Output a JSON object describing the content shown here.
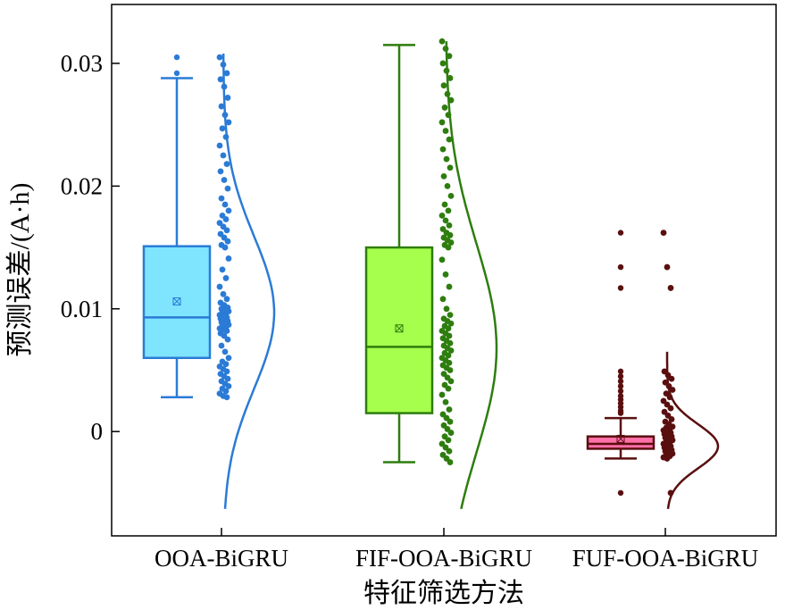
{
  "chart_data": {
    "type": "box",
    "xlabel": "特征筛选方法",
    "ylabel": "预测误差/(A·h)",
    "ylim": [
      -0.0085,
      0.0348
    ],
    "yticks": [
      0,
      0.01,
      0.02,
      0.03
    ],
    "ytick_labels": [
      "0",
      "0.01",
      "0.02",
      "0.03"
    ],
    "grid": false,
    "legend": "none",
    "categories": [
      "OOA-BiGRU",
      "FIF-OOA-BiGRU",
      "FUF-OOA-BiGRU"
    ],
    "series": [
      {
        "color": "#2b7bd6",
        "fill": "#7fe5ff",
        "box": {
          "whisker_low": 0.0028,
          "q1": 0.006,
          "median": 0.0093,
          "q3": 0.0151,
          "whisker_high": 0.0288,
          "mean": 0.0106
        },
        "outliers": [
          0.0292,
          0.0305
        ],
        "density": {
          "mean": 0.0097,
          "sd": 0.0062,
          "y_range": [
            -0.0063,
            0.0308
          ]
        },
        "points": [
          0.0305,
          0.0299,
          0.0292,
          0.0287,
          0.0281,
          0.0272,
          0.0265,
          0.0258,
          0.0252,
          0.0247,
          0.024,
          0.0233,
          0.0225,
          0.0218,
          0.0212,
          0.0205,
          0.0198,
          0.019,
          0.0185,
          0.018,
          0.0176,
          0.0173,
          0.017,
          0.0167,
          0.0164,
          0.0161,
          0.0158,
          0.0155,
          0.0152,
          0.015,
          0.0141,
          0.0132,
          0.0125,
          0.0118,
          0.0112,
          0.0108,
          0.0105,
          0.0103,
          0.0101,
          0.01,
          0.0099,
          0.0098,
          0.0097,
          0.0096,
          0.0095,
          0.0094,
          0.0093,
          0.0092,
          0.0091,
          0.009,
          0.0089,
          0.0088,
          0.0087,
          0.0086,
          0.0085,
          0.0084,
          0.0083,
          0.0082,
          0.008,
          0.0078,
          0.0075,
          0.007,
          0.0065,
          0.006,
          0.0057,
          0.0055,
          0.0053,
          0.0051,
          0.0049,
          0.0047,
          0.0045,
          0.0043,
          0.0041,
          0.0039,
          0.0037,
          0.0035,
          0.0033,
          0.0031,
          0.0029,
          0.0028
        ]
      },
      {
        "color": "#2e7d0f",
        "fill": "#a6ff4d",
        "box": {
          "whisker_low": -0.0025,
          "q1": 0.0015,
          "median": 0.0069,
          "q3": 0.015,
          "whisker_high": 0.0315,
          "mean": 0.0084
        },
        "outliers": [],
        "density": {
          "mean": 0.0068,
          "sd": 0.0085,
          "y_range": [
            -0.0063,
            0.0318
          ]
        },
        "points": [
          0.0318,
          0.0312,
          0.0306,
          0.03,
          0.0294,
          0.0288,
          0.0282,
          0.0275,
          0.027,
          0.0264,
          0.0258,
          0.0252,
          0.0245,
          0.0238,
          0.023,
          0.0222,
          0.0215,
          0.0208,
          0.02,
          0.0192,
          0.0185,
          0.018,
          0.0176,
          0.0172,
          0.0168,
          0.0165,
          0.0162,
          0.016,
          0.0158,
          0.0156,
          0.0154,
          0.0152,
          0.015,
          0.014,
          0.0128,
          0.0118,
          0.0108,
          0.01,
          0.0095,
          0.0092,
          0.009,
          0.0088,
          0.0086,
          0.0084,
          0.0082,
          0.008,
          0.0078,
          0.0076,
          0.0074,
          0.0072,
          0.007,
          0.0068,
          0.0066,
          0.0064,
          0.0062,
          0.006,
          0.0058,
          0.0056,
          0.0054,
          0.0052,
          0.005,
          0.0047,
          0.0044,
          0.0041,
          0.0038,
          0.0035,
          0.003,
          0.0024,
          0.0018,
          0.0014,
          0.0011,
          0.0008,
          0.0005,
          0.0002,
          -0.0001,
          -0.0004,
          -0.0007,
          -0.001,
          -0.0013,
          -0.0016,
          -0.0019,
          -0.0022,
          -0.0025
        ]
      },
      {
        "color": "#5a0f0f",
        "fill": "#ff6fa8",
        "box": {
          "whisker_low": -0.0022,
          "q1": -0.0014,
          "median": -0.001,
          "q3": -0.0004,
          "whisker_high": 0.0011,
          "mean": -0.0006
        },
        "outliers": [
          0.0162,
          0.0134,
          0.0117,
          0.0049,
          0.0045,
          0.0041,
          0.0037,
          0.0033,
          0.0029,
          0.0026,
          0.0023,
          0.002,
          0.0017,
          0.0015,
          -0.005
        ],
        "density": {
          "mean": -0.0012,
          "sd": 0.0018,
          "y_range": [
            -0.0063,
            0.0065
          ]
        },
        "points": [
          0.0162,
          0.0134,
          0.0117,
          0.0049,
          0.0046,
          0.0043,
          0.004,
          0.0037,
          0.0034,
          0.0031,
          0.0028,
          0.0025,
          0.0022,
          0.0019,
          0.0016,
          0.0013,
          0.001,
          0.0008,
          0.0006,
          0.0004,
          0.0003,
          0.0002,
          0.0001,
          0.0,
          -0.0001,
          -0.0002,
          -0.0003,
          -0.0004,
          -0.0005,
          -0.0006,
          -0.0007,
          -0.0008,
          -0.0009,
          -0.001,
          -0.0011,
          -0.0012,
          -0.0013,
          -0.0014,
          -0.0015,
          -0.0016,
          -0.0017,
          -0.0018,
          -0.0019,
          -0.002,
          -0.0021,
          -0.0022,
          -0.005
        ]
      }
    ]
  }
}
